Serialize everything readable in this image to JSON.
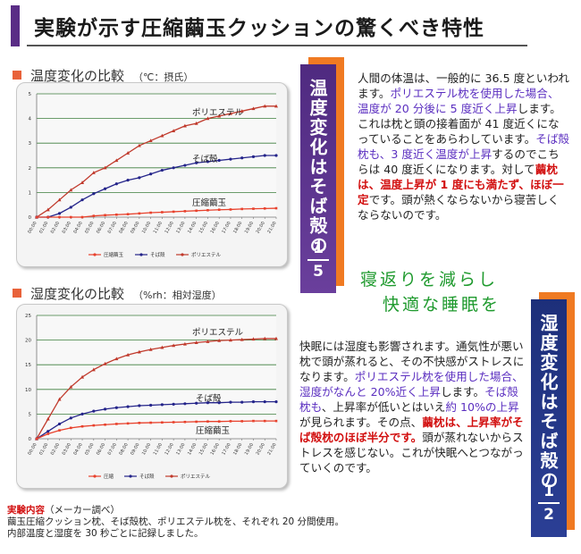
{
  "header": {
    "title": "実験が示す圧縮繭玉クッションの驚くべき特性"
  },
  "temp_section": {
    "heading": "温度変化の比較",
    "unit": "（℃：摂氏）",
    "banner_text": "温度変化はそば殻の",
    "banner_frac_num": "1",
    "banner_frac_den": "5",
    "para": [
      {
        "t": "人間の体温は、一般的に 36.5 度といわれます。",
        "c": ""
      },
      {
        "t": "ポリエステル枕を使用した場合、温度が 20 分後に 5 度近く上昇",
        "c": "pur"
      },
      {
        "t": "します。これは枕と頭の接着面が 41 度近くになっていることをあらわしています。",
        "c": ""
      },
      {
        "t": "そば殻枕も、3 度近く温度が上昇",
        "c": "pur"
      },
      {
        "t": "するのでこちらは 40 度近くになります。対して",
        "c": ""
      },
      {
        "t": "繭枕は、温度上昇が 1 度にも満たず、ほぼ一定",
        "c": "red"
      },
      {
        "t": "です。頭が熱くならないから寝苦しくならないのです。",
        "c": ""
      }
    ]
  },
  "catch": {
    "line1": "寝返りを減らし",
    "line2": "快適な睡眠を"
  },
  "humid_section": {
    "heading": "湿度変化の比較",
    "unit": "（%rh：相対湿度）",
    "banner_text": "湿度変化はそば殻の",
    "banner_frac_num": "1",
    "banner_frac_den": "2",
    "para": [
      {
        "t": "快眠には湿度も影響されます。通気性が悪い枕で頭が蒸れると、その不快感がストレスになります。",
        "c": ""
      },
      {
        "t": "ポリエステル枕を使用した場合、湿度がなんと 20%近く上昇",
        "c": "pur"
      },
      {
        "t": "します。",
        "c": ""
      },
      {
        "t": "そば殻枕も",
        "c": "pur"
      },
      {
        "t": "、上昇率が低いとはいえ",
        "c": ""
      },
      {
        "t": "約 10%の上昇",
        "c": "pur"
      },
      {
        "t": "が見られます。その点、",
        "c": ""
      },
      {
        "t": "繭枕は、上昇率がそば殻枕のほぼ半分です。",
        "c": "red"
      },
      {
        "t": "頭が蒸れないからストレスを感じない。これが快眠へとつながっていくのです。",
        "c": ""
      }
    ]
  },
  "note": {
    "title": "実験内容",
    "source": "（メーカー調べ）",
    "line1": "繭玉圧縮クッション枕、そば殻枕、ポリエステル枕を、それぞれ 20 分間使用。",
    "line2": "内部温度と湿度を 30 秒ごとに記録しました。"
  },
  "colors": {
    "polyester": "#c0392b",
    "soba": "#24248a",
    "mayu": "#e8412c",
    "grid_green": "#3c7d3c"
  },
  "chart_data": [
    {
      "type": "line",
      "title": "温度変化の比較",
      "ylim": [
        0,
        5
      ],
      "y_ticks": [
        "0",
        "1",
        "2",
        "3",
        "4",
        "5"
      ],
      "x_ticks": [
        "00:00",
        "01:00",
        "02:00",
        "03:00",
        "04:00",
        "05:00",
        "06:00",
        "07:00",
        "08:00",
        "09:00",
        "10:00",
        "11:00",
        "12:00",
        "13:00",
        "14:00",
        "15:00",
        "16:00",
        "17:00",
        "18:00",
        "19:00",
        "20:00",
        "21:00"
      ],
      "legend": [
        "圧縮繭玉",
        "そば殻",
        "ポリエステル"
      ],
      "series": [
        {
          "name": "ポリエステル",
          "label": "ポリエステル",
          "color": "#c0392b",
          "values": [
            0,
            0.3,
            0.7,
            1.1,
            1.4,
            1.8,
            2.0,
            2.3,
            2.6,
            2.9,
            3.1,
            3.3,
            3.5,
            3.7,
            3.8,
            4.0,
            4.1,
            4.2,
            4.3,
            4.4,
            4.5,
            4.5
          ]
        },
        {
          "name": "そば殻",
          "label": "そば殻",
          "color": "#24248a",
          "values": [
            0,
            0,
            0.15,
            0.4,
            0.7,
            0.95,
            1.15,
            1.35,
            1.5,
            1.6,
            1.75,
            1.9,
            2.0,
            2.1,
            2.2,
            2.25,
            2.3,
            2.35,
            2.4,
            2.45,
            2.5,
            2.5
          ]
        },
        {
          "name": "圧縮繭玉",
          "label": "圧縮繭玉",
          "color": "#e8412c",
          "values": [
            0,
            0,
            0,
            0,
            0,
            0.05,
            0.08,
            0.1,
            0.12,
            0.15,
            0.18,
            0.2,
            0.22,
            0.24,
            0.26,
            0.28,
            0.3,
            0.31,
            0.33,
            0.34,
            0.35,
            0.36
          ]
        }
      ]
    },
    {
      "type": "line",
      "title": "湿度変化の比較",
      "ylim": [
        0,
        25
      ],
      "y_ticks": [
        "0",
        "5",
        "10",
        "15",
        "20",
        "25"
      ],
      "x_ticks": [
        "00:00",
        "01:00",
        "02:00",
        "03:00",
        "04:00",
        "05:00",
        "06:00",
        "07:00",
        "08:00",
        "09:00",
        "10:00",
        "11:00",
        "12:00",
        "13:00",
        "14:00",
        "15:00",
        "16:00",
        "17:00",
        "18:00",
        "19:00",
        "20:00",
        "21:00"
      ],
      "legend": [
        "圧縮",
        "そば殻",
        "ポリエステル"
      ],
      "series": [
        {
          "name": "ポリエステル",
          "label": "ポリエステル",
          "color": "#c0392b",
          "values": [
            0,
            4,
            8,
            10.5,
            12.5,
            14,
            15.2,
            16.2,
            17,
            17.6,
            18.1,
            18.5,
            18.9,
            19.2,
            19.5,
            19.7,
            19.9,
            20,
            20.1,
            20.2,
            20.3,
            20.3
          ]
        },
        {
          "name": "そば殻",
          "label": "そば殻",
          "color": "#24248a",
          "values": [
            0,
            1.5,
            3,
            4.2,
            5,
            5.6,
            6,
            6.3,
            6.5,
            6.7,
            6.8,
            6.9,
            7,
            7.1,
            7.2,
            7.3,
            7.3,
            7.4,
            7.4,
            7.5,
            7.5,
            7.5
          ]
        },
        {
          "name": "圧縮繭玉",
          "label": "圧縮繭玉",
          "color": "#e8412c",
          "values": [
            0,
            1,
            1.7,
            2.2,
            2.5,
            2.7,
            2.85,
            3,
            3.1,
            3.2,
            3.25,
            3.3,
            3.35,
            3.4,
            3.45,
            3.5,
            3.5,
            3.55,
            3.55,
            3.6,
            3.6,
            3.6
          ]
        }
      ]
    }
  ]
}
